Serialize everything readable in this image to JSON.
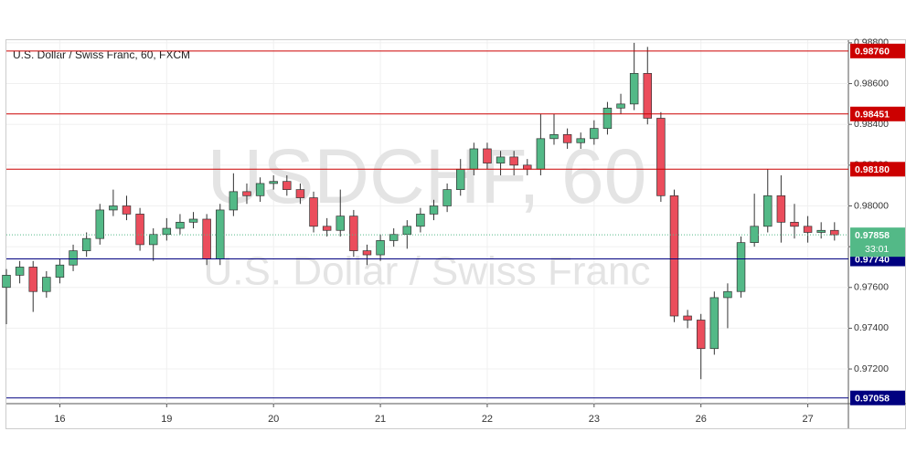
{
  "chart_data": {
    "type": "candlestick",
    "title": "U.S. Dollar / Swiss Franc, 60, FXCM",
    "watermark": "USDCHF, 60",
    "watermark_subtitle": "U.S. Dollar / Swiss Franc",
    "up_color": "#53b987",
    "down_color": "#eb4d5c",
    "x": [
      -0.5,
      -0.375,
      -0.25,
      -0.125,
      0,
      0.125,
      0.25,
      0.375,
      0.5,
      0.625,
      0.75,
      0.875,
      1,
      1.125,
      1.25,
      1.375,
      1.5,
      1.625,
      1.75,
      1.875,
      2,
      2.125,
      2.25,
      2.375,
      2.5,
      2.625,
      2.75,
      2.875,
      3,
      3.125,
      3.25,
      3.375,
      3.5,
      3.625,
      3.75,
      3.875,
      4,
      4.125,
      4.25,
      4.375,
      4.5,
      4.625,
      4.75,
      4.875,
      5,
      5.125,
      5.25,
      5.375,
      5.5,
      5.625,
      5.75,
      5.875,
      6,
      6.125,
      6.25,
      6.375,
      6.5,
      6.625,
      6.75,
      6.875,
      7,
      7.125,
      7.25
    ],
    "open": [
      0.976,
      0.9766,
      0.977,
      0.9758,
      0.9765,
      0.9771,
      0.9778,
      0.9784,
      0.9798,
      0.98,
      0.9796,
      0.9781,
      0.9786,
      0.9789,
      0.9792,
      0.97935,
      0.9774,
      0.9798,
      0.9807,
      0.9805,
      0.9811,
      0.9812,
      0.9808,
      0.9804,
      0.979,
      0.9788,
      0.9795,
      0.9778,
      0.9776,
      0.9783,
      0.9786,
      0.979,
      0.9796,
      0.98,
      0.9808,
      0.9818,
      0.9828,
      0.9821,
      0.9824,
      0.982,
      0.9818,
      0.9833,
      0.9835,
      0.9831,
      0.9833,
      0.9838,
      0.9848,
      0.985,
      0.9865,
      0.9843,
      0.9805,
      0.9746,
      0.9744,
      0.973,
      0.9755,
      0.9758,
      0.9782,
      0.979,
      0.9805,
      0.9792,
      0.979,
      0.9787,
      0.9788
    ],
    "high": [
      0.9769,
      0.9773,
      0.9773,
      0.9768,
      0.9774,
      0.9781,
      0.9787,
      0.9801,
      0.9808,
      0.9805,
      0.9799,
      0.9789,
      0.9794,
      0.9796,
      0.9797,
      0.9796,
      0.9801,
      0.9816,
      0.9811,
      0.9814,
      0.9815,
      0.9815,
      0.9811,
      0.9807,
      0.9794,
      0.9808,
      0.9798,
      0.9781,
      0.9786,
      0.9789,
      0.9793,
      0.9799,
      0.9803,
      0.9811,
      0.9823,
      0.9831,
      0.9831,
      0.9827,
      0.9827,
      0.9823,
      0.9845,
      0.9845,
      0.9838,
      0.9836,
      0.9842,
      0.9851,
      0.9855,
      0.988,
      0.9878,
      0.9846,
      0.9808,
      0.9749,
      0.9747,
      0.9758,
      0.9762,
      0.9785,
      0.9806,
      0.9818,
      0.9815,
      0.9801,
      0.9795,
      0.9792,
      0.9792
    ],
    "low": [
      0.9742,
      0.9762,
      0.9748,
      0.9755,
      0.9762,
      0.9768,
      0.9775,
      0.9781,
      0.9795,
      0.9793,
      0.9778,
      0.9773,
      0.9783,
      0.9786,
      0.9789,
      0.9771,
      0.9771,
      0.9795,
      0.9801,
      0.9802,
      0.9808,
      0.9805,
      0.9801,
      0.9787,
      0.9785,
      0.9785,
      0.9775,
      0.9771,
      0.9773,
      0.978,
      0.9779,
      0.9787,
      0.9793,
      0.9797,
      0.9805,
      0.9815,
      0.9818,
      0.9815,
      0.9815,
      0.9815,
      0.9815,
      0.983,
      0.9828,
      0.9828,
      0.983,
      0.9835,
      0.9845,
      0.9847,
      0.984,
      0.9802,
      0.9743,
      0.974,
      0.9715,
      0.9727,
      0.974,
      0.9755,
      0.978,
      0.9787,
      0.9782,
      0.9784,
      0.9782,
      0.9784,
      0.9783
    ],
    "close": [
      0.9766,
      0.977,
      0.9758,
      0.9765,
      0.9771,
      0.9778,
      0.9784,
      0.9798,
      0.98,
      0.9796,
      0.9781,
      0.9786,
      0.9789,
      0.9792,
      0.97935,
      0.9774,
      0.9798,
      0.9807,
      0.9805,
      0.9811,
      0.9812,
      0.9808,
      0.9804,
      0.979,
      0.9788,
      0.9795,
      0.9778,
      0.9776,
      0.9783,
      0.9786,
      0.979,
      0.9796,
      0.98,
      0.9808,
      0.9818,
      0.9828,
      0.9821,
      0.9824,
      0.982,
      0.9818,
      0.9833,
      0.9835,
      0.9831,
      0.9833,
      0.9838,
      0.9848,
      0.985,
      0.9865,
      0.9843,
      0.9805,
      0.9746,
      0.9744,
      0.973,
      0.9755,
      0.9758,
      0.9782,
      0.979,
      0.9805,
      0.9792,
      0.979,
      0.9787,
      0.9788,
      0.97858
    ],
    "xlim": [
      -0.5,
      7.38
    ],
    "xticks": [
      {
        "value": 0,
        "label": "16"
      },
      {
        "value": 1,
        "label": "19"
      },
      {
        "value": 2,
        "label": "20"
      },
      {
        "value": 3,
        "label": "21"
      },
      {
        "value": 4,
        "label": "22"
      },
      {
        "value": 5,
        "label": "23"
      },
      {
        "value": 6,
        "label": "26"
      },
      {
        "value": 7,
        "label": "27"
      }
    ],
    "ylim": [
      0.9703,
      0.98813
    ],
    "yticks": [
      {
        "value": 0.972,
        "label": "0.97200"
      },
      {
        "value": 0.974,
        "label": "0.97400"
      },
      {
        "value": 0.976,
        "label": "0.97600"
      },
      {
        "value": 0.978,
        "label": "0.97800"
      },
      {
        "value": 0.98,
        "label": "0.98000"
      },
      {
        "value": 0.982,
        "label": "0.98200"
      },
      {
        "value": 0.984,
        "label": "0.98400"
      },
      {
        "value": 0.986,
        "label": "0.98600"
      },
      {
        "value": 0.988,
        "label": "0.98800"
      }
    ],
    "levels": [
      {
        "value": 0.9876,
        "label": "0.98760",
        "color": "#cc0000"
      },
      {
        "value": 0.98451,
        "label": "0.98451",
        "color": "#cc0000"
      },
      {
        "value": 0.9818,
        "label": "0.98180",
        "color": "#cc0000"
      },
      {
        "value": 0.9774,
        "label": "0.97740",
        "color": "#000080"
      },
      {
        "value": 0.97058,
        "label": "0.97058",
        "color": "#000080"
      }
    ],
    "last_price": {
      "value": 0.97858,
      "label": "0.97858",
      "countdown": "33:01",
      "color": "#53b987"
    }
  }
}
